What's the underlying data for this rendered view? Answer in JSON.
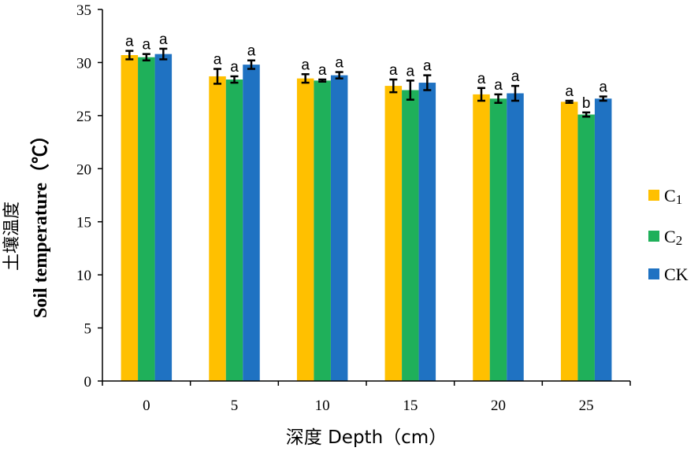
{
  "chart_data": {
    "type": "bar",
    "categories": [
      "0",
      "5",
      "10",
      "15",
      "20",
      "25"
    ],
    "series": [
      {
        "name": "C1",
        "legend_main": "C",
        "legend_sub": "1",
        "color": "#FFC000",
        "values": [
          30.7,
          28.7,
          28.5,
          27.8,
          27.0,
          26.3
        ],
        "errors": [
          0.4,
          0.7,
          0.4,
          0.6,
          0.6,
          0.1
        ],
        "letters": [
          "a",
          "a",
          "a",
          "a",
          "a",
          "a"
        ]
      },
      {
        "name": "C2",
        "legend_main": "C",
        "legend_sub": "2",
        "color": "#1FB05A",
        "values": [
          30.5,
          28.4,
          28.3,
          27.4,
          26.6,
          25.1
        ],
        "errors": [
          0.3,
          0.3,
          0.1,
          0.9,
          0.4,
          0.2
        ],
        "letters": [
          "a",
          "a",
          "a",
          "a",
          "a",
          "b"
        ]
      },
      {
        "name": "CK",
        "legend_main": "CK",
        "legend_sub": "",
        "color": "#1F72C2",
        "values": [
          30.8,
          29.8,
          28.8,
          28.1,
          27.1,
          26.6
        ],
        "errors": [
          0.5,
          0.4,
          0.3,
          0.7,
          0.7,
          0.2
        ],
        "letters": [
          "a",
          "a",
          "a",
          "a",
          "a",
          "a"
        ]
      }
    ],
    "ylim": [
      0,
      35
    ],
    "yticks": [
      "0",
      "5",
      "10",
      "15",
      "20",
      "25",
      "30",
      "35"
    ],
    "ylabel_cn": "土壤温度",
    "ylabel_en": "Soil temperature（℃）",
    "xlabel": "深度 Depth（cm）",
    "grid": false,
    "legend_position": "right"
  }
}
